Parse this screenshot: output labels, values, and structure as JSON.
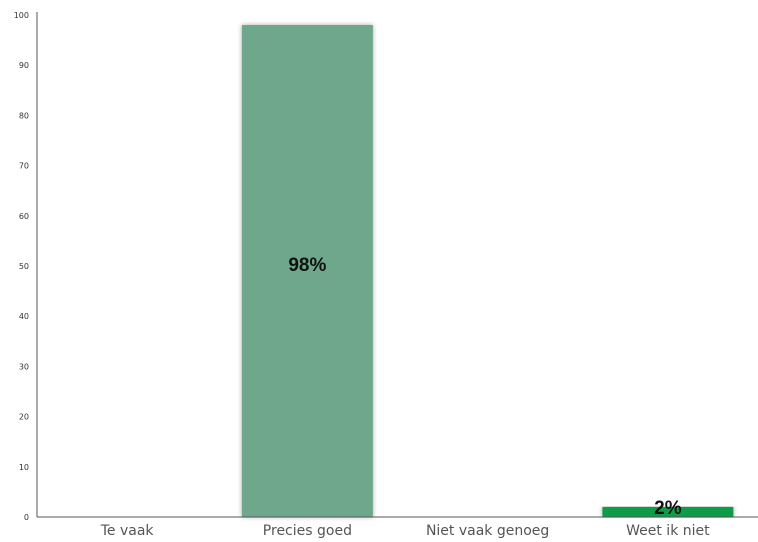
{
  "chart_data": {
    "type": "bar",
    "categories": [
      "Te vaak",
      "Precies goed",
      "Niet vaak genoeg",
      "Weet ik niet"
    ],
    "values": [
      0,
      98,
      0,
      2
    ],
    "data_labels": [
      "",
      "98%",
      "",
      "2%"
    ],
    "bar_colors": [
      "#6ea78c",
      "#6ea78c",
      "#6ea78c",
      "#0f9d4a"
    ],
    "yticks": [
      0,
      10,
      20,
      30,
      40,
      50,
      60,
      70,
      80,
      90,
      100
    ],
    "ylim": [
      0,
      100
    ],
    "title": "",
    "xlabel": "",
    "ylabel": "",
    "grid": false,
    "legend": "none"
  }
}
